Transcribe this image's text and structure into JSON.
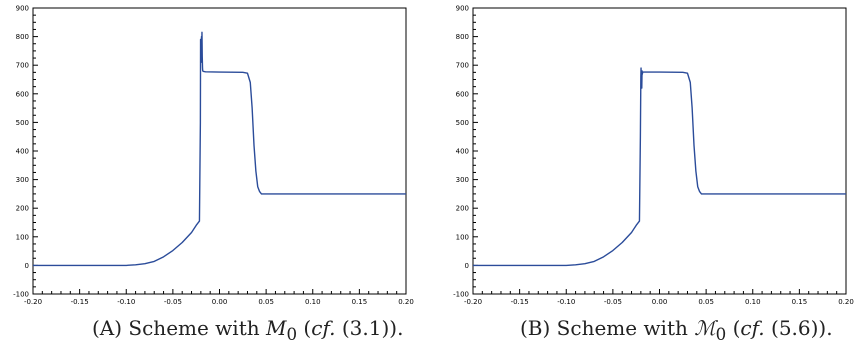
{
  "chart_data": [
    {
      "type": "line",
      "xlim": [
        -0.2,
        0.2
      ],
      "ylim": [
        -100,
        900
      ],
      "xticks": [
        "-0.20",
        "-0.15",
        "-0.10",
        "-0.05",
        "0.00",
        "0.05",
        "0.10",
        "0.15",
        "0.20"
      ],
      "yticks": [
        "-100",
        "0",
        "100",
        "200",
        "300",
        "400",
        "500",
        "600",
        "700",
        "800",
        "900"
      ],
      "grid": false,
      "series_color": "#2b4c9a",
      "x": [
        -0.2,
        -0.1,
        -0.09,
        -0.08,
        -0.07,
        -0.06,
        -0.05,
        -0.04,
        -0.03,
        -0.025,
        -0.0215,
        -0.0205,
        -0.0203,
        -0.0198,
        -0.0193,
        -0.019,
        -0.0188,
        -0.0185,
        -0.0182,
        -0.018,
        -0.017,
        -0.015,
        0.0,
        0.025,
        0.03,
        0.033,
        0.035,
        0.037,
        0.039,
        0.041,
        0.043,
        0.045,
        0.05,
        0.1,
        0.2
      ],
      "y": [
        0,
        0,
        2,
        6,
        14,
        30,
        52,
        80,
        115,
        140,
        155,
        500,
        790,
        710,
        800,
        740,
        815,
        730,
        690,
        680,
        678,
        677,
        676,
        675,
        672,
        640,
        550,
        420,
        330,
        275,
        258,
        250,
        250,
        250,
        250
      ],
      "caption": {
        "prefix": "(A) Scheme with ",
        "symbol": "M",
        "sub": "0",
        "open": " (",
        "cf": "cf.",
        "close": " (3.1))."
      }
    },
    {
      "type": "line",
      "xlim": [
        -0.2,
        0.2
      ],
      "ylim": [
        -100,
        900
      ],
      "xticks": [
        "-0.20",
        "-0.15",
        "-0.10",
        "-0.05",
        "0.00",
        "0.05",
        "0.10",
        "0.15",
        "0.20"
      ],
      "yticks": [
        "-100",
        "0",
        "100",
        "200",
        "300",
        "400",
        "500",
        "600",
        "700",
        "800",
        "900"
      ],
      "grid": false,
      "series_color": "#2b4c9a",
      "x": [
        -0.2,
        -0.1,
        -0.09,
        -0.08,
        -0.07,
        -0.06,
        -0.05,
        -0.04,
        -0.03,
        -0.025,
        -0.0215,
        -0.0205,
        -0.02,
        -0.0198,
        -0.0195,
        -0.0193,
        -0.019,
        -0.0187,
        -0.0185,
        -0.018,
        0.0,
        0.025,
        0.03,
        0.033,
        0.035,
        0.037,
        0.039,
        0.041,
        0.043,
        0.045,
        0.05,
        0.1,
        0.2
      ],
      "y": [
        0,
        0,
        2,
        6,
        14,
        30,
        52,
        80,
        115,
        140,
        155,
        450,
        660,
        690,
        640,
        675,
        620,
        680,
        668,
        676,
        676,
        675,
        672,
        640,
        550,
        420,
        330,
        275,
        258,
        250,
        250,
        250,
        250
      ],
      "caption": {
        "prefix": "(B) Scheme with ",
        "symbol": "ℳ",
        "sub": "0",
        "open": " (",
        "cf": "cf.",
        "close": " (5.6))."
      }
    }
  ]
}
